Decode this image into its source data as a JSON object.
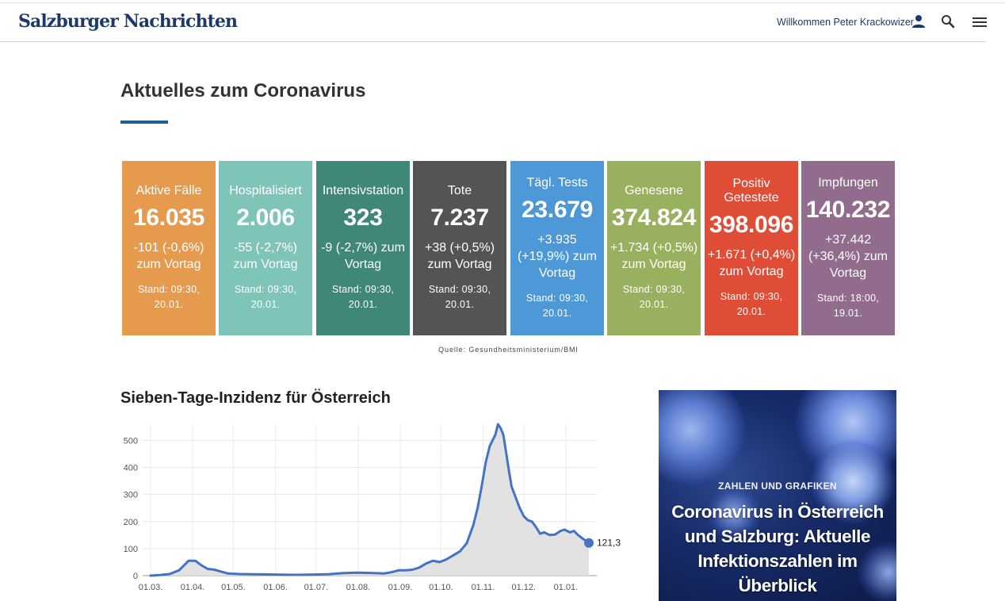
{
  "header": {
    "logo": "Salzburger Nachrichten",
    "welcome": "Willkommen Peter Krackowizer",
    "icons": [
      "user-icon",
      "search-icon",
      "menu-icon"
    ]
  },
  "page": {
    "title": "Aktuelles zum Coronavirus",
    "accent_color": "#1f5d9e"
  },
  "stats": [
    {
      "label": "Aktive Fälle",
      "value": "16.035",
      "delta": "-101 (-0,6%) zum Vortag",
      "stand": "Stand: 09:30, 20.01.",
      "color": "#e69a4e"
    },
    {
      "label": "Hospitalisiert",
      "value": "2.006",
      "delta": "-55 (-2,7%) zum Vortag",
      "stand": "Stand: 09:30, 20.01.",
      "color": "#7fc4b8"
    },
    {
      "label": "Intensivstation",
      "value": "323",
      "delta": "-9 (-2,7%) zum Vortag",
      "stand": "Stand: 09:30, 20.01.",
      "color": "#3f8778"
    },
    {
      "label": "Tote",
      "value": "7.237",
      "delta": "+38 (+0,5%) zum Vortag",
      "stand": "Stand: 09:30, 20.01.",
      "color": "#545454"
    },
    {
      "label": "Tägl. Tests",
      "value": "23.679",
      "delta": "+3.935 (+19,9%) zum Vortag",
      "stand": "Stand: 09:30, 20.01.",
      "color": "#4d98d6"
    },
    {
      "label": "Genesene",
      "value": "374.824",
      "delta": "+1.734 (+0,5%) zum Vortag",
      "stand": "Stand: 09:30, 20.01.",
      "color": "#99b15f"
    },
    {
      "label": "Positiv Getestete",
      "value": "398.096",
      "delta": "+1.671 (+0,4%) zum Vortag",
      "stand": "Stand: 09:30, 20.01.",
      "color": "#df4d37"
    },
    {
      "label": "Impfungen",
      "value": "140.232",
      "delta": "+37.442 (+36,4%) zum Vortag",
      "stand": "Stand: 18:00, 19.01.",
      "color": "#926c8d"
    }
  ],
  "source": "Quelle: Gesundheitsministerium/BMI",
  "chart_section": {
    "title": "Sieben-Tage-Inzidenz für Österreich"
  },
  "chart_data": {
    "type": "area",
    "title": "Sieben-Tage-Inzidenz für Österreich",
    "xlabel": "",
    "ylabel": "",
    "x_ticks": [
      "01.03.",
      "01.04.",
      "01.05.",
      "01.06.",
      "01.07.",
      "01.08.",
      "01.09.",
      "01.10.",
      "01.11.",
      "01.12.",
      "01.01."
    ],
    "y_ticks": [
      0,
      100,
      200,
      300,
      400,
      500
    ],
    "ylim": [
      0,
      560
    ],
    "grid": true,
    "line_color": "#4472c4",
    "fill_color": "#e2e2e2",
    "last_value_label": "121,3",
    "series": [
      {
        "x": [
          "2020-03-01",
          "2020-03-08",
          "2020-03-15",
          "2020-03-22",
          "2020-03-26",
          "2020-03-29",
          "2020-04-03",
          "2020-04-07",
          "2020-04-12",
          "2020-04-17",
          "2020-04-22",
          "2020-04-27",
          "2020-05-05",
          "2020-05-15",
          "2020-05-31",
          "2020-06-15",
          "2020-06-30",
          "2020-07-10",
          "2020-07-20",
          "2020-07-31",
          "2020-08-10",
          "2020-08-20",
          "2020-08-25",
          "2020-08-31",
          "2020-09-05",
          "2020-09-10",
          "2020-09-15",
          "2020-09-20",
          "2020-09-25",
          "2020-09-30",
          "2020-10-05",
          "2020-10-10",
          "2020-10-15",
          "2020-10-20",
          "2020-10-25",
          "2020-10-28",
          "2020-10-31",
          "2020-11-03",
          "2020-11-06",
          "2020-11-10",
          "2020-11-12",
          "2020-11-14",
          "2020-11-16",
          "2020-11-18",
          "2020-11-20",
          "2020-11-22",
          "2020-11-25",
          "2020-11-28",
          "2020-12-01",
          "2020-12-04",
          "2020-12-07",
          "2020-12-10",
          "2020-12-13",
          "2020-12-16",
          "2020-12-20",
          "2020-12-24",
          "2020-12-28",
          "2020-12-31",
          "2021-01-04",
          "2021-01-07",
          "2021-01-10",
          "2021-01-14",
          "2021-01-18"
        ],
        "y": [
          0,
          2,
          6,
          20,
          40,
          55,
          55,
          40,
          25,
          22,
          15,
          8,
          6,
          5,
          4,
          3,
          4,
          5,
          9,
          11,
          10,
          8,
          12,
          20,
          20,
          22,
          30,
          45,
          55,
          50,
          60,
          75,
          90,
          120,
          190,
          250,
          330,
          420,
          480,
          520,
          560,
          545,
          520,
          455,
          390,
          330,
          290,
          250,
          220,
          205,
          200,
          180,
          155,
          160,
          150,
          152,
          165,
          170,
          160,
          165,
          150,
          135,
          121
        ]
      }
    ]
  },
  "teaser": {
    "kicker": "Zahlen und Grafiken",
    "headline": "Coronavirus in Österreich und Salzburg: Aktuelle Infektionszahlen im Überblick"
  }
}
